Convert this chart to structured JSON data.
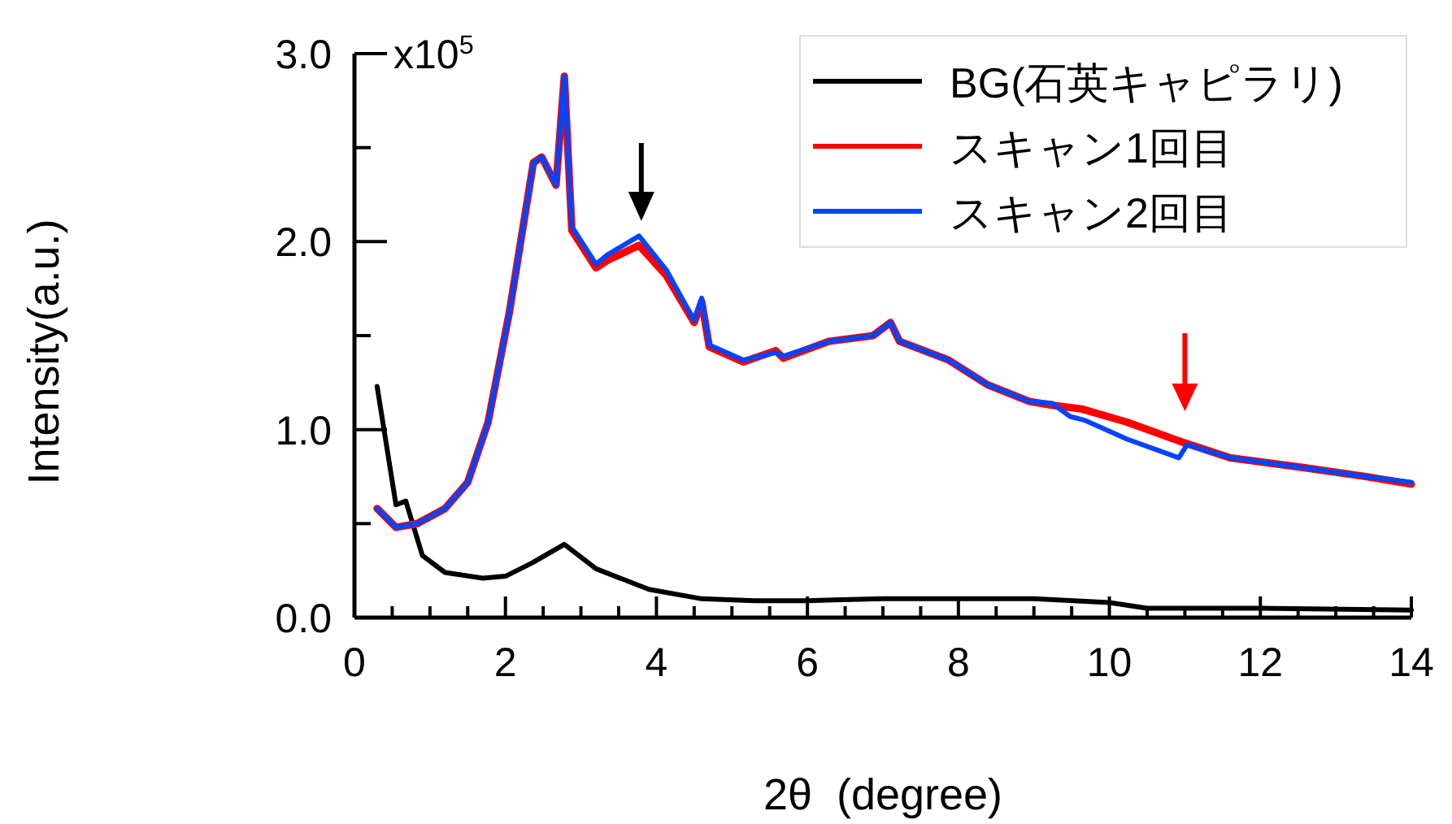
{
  "chart_data": {
    "type": "line",
    "xlabel": "2θ  (degree)",
    "ylabel": "Intensity(a.u.)",
    "xlim": [
      0,
      14
    ],
    "ylim": [
      0,
      3
    ],
    "xticks": [
      0,
      {
        "value": 0.5,
        "label": null
      },
      {
        "value": 1,
        "label": null
      },
      {
        "value": 1.5,
        "label": null
      },
      2,
      {
        "value": 2.5,
        "label": null
      },
      {
        "value": 3,
        "label": null
      },
      {
        "value": 3.5,
        "label": null
      },
      4,
      {
        "value": 4.5,
        "label": null
      },
      {
        "value": 5,
        "label": null
      },
      {
        "value": 5.5,
        "label": null
      },
      6,
      {
        "value": 6.5,
        "label": null
      },
      {
        "value": 7,
        "label": null
      },
      {
        "value": 7.5,
        "label": null
      },
      8,
      {
        "value": 8.5,
        "label": null
      },
      {
        "value": 9,
        "label": null
      },
      {
        "value": 9.5,
        "label": null
      },
      10,
      {
        "value": 10.5,
        "label": null
      },
      {
        "value": 11,
        "label": null
      },
      {
        "value": 11.5,
        "label": null
      },
      12,
      {
        "value": 12.5,
        "label": null
      },
      {
        "value": 13,
        "label": null
      },
      {
        "value": 13.5,
        "label": null
      },
      14
    ],
    "yticks": [
      {
        "value": 0,
        "label": "0.0"
      },
      {
        "value": 0.5,
        "label": null
      },
      {
        "value": 1,
        "label": "1.0"
      },
      {
        "value": 1.5,
        "label": null
      },
      {
        "value": 2,
        "label": "2.0"
      },
      {
        "value": 2.5,
        "label": null
      },
      {
        "value": 3,
        "label": "3.0"
      }
    ],
    "annotations": [
      "x10$^{5}$"
    ],
    "grid": false,
    "legend": "top right",
    "marker": "none",
    "line_style": "solid",
    "series": [
      {
        "name": "BG(石英キャピラリ)",
        "color": "#000000",
        "x": [
          0.3,
          0.55,
          0.68,
          0.9,
          1.2,
          1.7,
          2.0,
          2.35,
          2.78,
          3.2,
          3.9,
          4.6,
          5.3,
          6,
          7,
          8,
          9,
          10,
          10.5,
          12,
          14
        ],
        "values": [
          1.23,
          0.6,
          0.62,
          0.33,
          0.24,
          0.21,
          0.22,
          0.29,
          0.39,
          0.26,
          0.15,
          0.1,
          0.09,
          0.09,
          0.1,
          0.1,
          0.1,
          0.08,
          0.05,
          0.05,
          0.04
        ]
      },
      {
        "name": "スキャン1回目",
        "color": "#ff0000",
        "x": [
          0.3,
          0.55,
          0.83,
          1.2,
          1.5,
          1.77,
          2.05,
          2.37,
          2.48,
          2.67,
          2.78,
          2.88,
          3.2,
          3.35,
          3.77,
          4.13,
          4.5,
          4.6,
          4.7,
          5.15,
          5.58,
          5.68,
          6.29,
          6.87,
          7.1,
          7.22,
          7.87,
          8.38,
          8.94,
          9.24,
          9.63,
          10.23,
          10.92,
          11.6,
          12.53,
          13.4,
          14
        ],
        "values": [
          0.58,
          0.48,
          0.5,
          0.58,
          0.72,
          1.04,
          1.62,
          2.42,
          2.45,
          2.3,
          2.88,
          2.06,
          1.86,
          1.9,
          1.98,
          1.82,
          1.57,
          1.68,
          1.44,
          1.36,
          1.42,
          1.38,
          1.47,
          1.5,
          1.57,
          1.47,
          1.37,
          1.24,
          1.15,
          1.13,
          1.11,
          1.04,
          0.94,
          0.85,
          0.8,
          0.75,
          0.71
        ]
      },
      {
        "name": "スキャン2回目",
        "color": "#0044ff",
        "x": [
          0.3,
          0.55,
          0.83,
          1.2,
          1.5,
          1.77,
          2.05,
          2.37,
          2.48,
          2.67,
          2.78,
          2.88,
          3.2,
          3.35,
          3.77,
          4.13,
          4.5,
          4.6,
          4.7,
          5.15,
          5.58,
          5.68,
          6.29,
          6.87,
          7.1,
          7.22,
          7.87,
          8.38,
          8.94,
          9.24,
          9.48,
          9.67,
          10.23,
          10.92,
          11.03,
          11.6,
          12.53,
          13.4,
          14
        ],
        "values": [
          0.58,
          0.48,
          0.5,
          0.58,
          0.72,
          1.04,
          1.62,
          2.42,
          2.45,
          2.3,
          2.88,
          2.08,
          1.88,
          1.93,
          2.03,
          1.85,
          1.58,
          1.7,
          1.45,
          1.37,
          1.41,
          1.39,
          1.47,
          1.5,
          1.57,
          1.47,
          1.37,
          1.24,
          1.15,
          1.14,
          1.07,
          1.05,
          0.95,
          0.85,
          0.92,
          0.85,
          0.8,
          0.75,
          0.72
        ]
      }
    ]
  }
}
